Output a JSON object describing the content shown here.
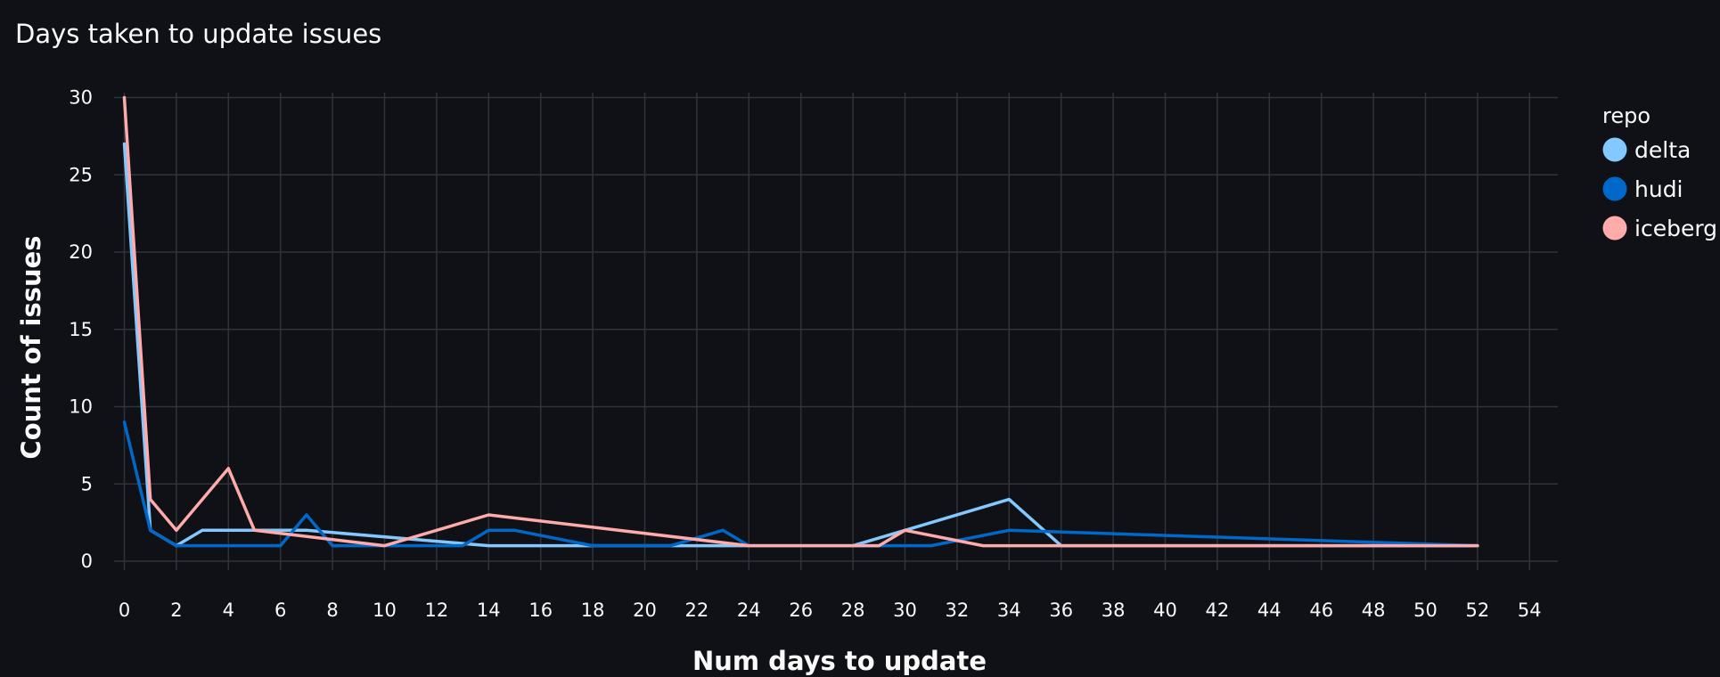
{
  "chart_data": {
    "type": "line",
    "title": "Days taken to update issues",
    "xlabel": "Num days to update",
    "ylabel": "Count of issues",
    "xlim": [
      -0.5,
      55
    ],
    "ylim": [
      0,
      30
    ],
    "x_ticks": [
      0,
      2,
      4,
      6,
      8,
      10,
      12,
      14,
      16,
      18,
      20,
      22,
      24,
      26,
      28,
      30,
      32,
      34,
      36,
      38,
      40,
      42,
      44,
      46,
      48,
      50,
      52,
      54
    ],
    "y_ticks": [
      0,
      5,
      10,
      15,
      20,
      25,
      30
    ],
    "grid": true,
    "legend": {
      "title": "repo",
      "position": "right"
    },
    "series": [
      {
        "name": "delta",
        "color": "#83c9ff",
        "points": [
          [
            0,
            27
          ],
          [
            1,
            2
          ],
          [
            2,
            1
          ],
          [
            3,
            2
          ],
          [
            5,
            2
          ],
          [
            7,
            2
          ],
          [
            14,
            1
          ],
          [
            28,
            1
          ],
          [
            30,
            2
          ],
          [
            34,
            4
          ],
          [
            36,
            1
          ],
          [
            52,
            1
          ]
        ]
      },
      {
        "name": "hudi",
        "color": "#0068c9",
        "points": [
          [
            0,
            9
          ],
          [
            1,
            2
          ],
          [
            2,
            1
          ],
          [
            3,
            1
          ],
          [
            6,
            1
          ],
          [
            7,
            3
          ],
          [
            8,
            1
          ],
          [
            10,
            1
          ],
          [
            13,
            1
          ],
          [
            14,
            2
          ],
          [
            15,
            2
          ],
          [
            18,
            1
          ],
          [
            21,
            1
          ],
          [
            23,
            2
          ],
          [
            24,
            1
          ],
          [
            31,
            1
          ],
          [
            34,
            2
          ],
          [
            52,
            1
          ]
        ]
      },
      {
        "name": "iceberg",
        "color": "#ffabab",
        "points": [
          [
            0,
            30
          ],
          [
            1,
            4
          ],
          [
            2,
            2
          ],
          [
            4,
            6
          ],
          [
            5,
            2
          ],
          [
            10,
            1
          ],
          [
            14,
            3
          ],
          [
            24,
            1
          ],
          [
            29,
            1
          ],
          [
            30,
            2
          ],
          [
            33,
            1
          ],
          [
            52,
            1
          ]
        ]
      }
    ]
  }
}
